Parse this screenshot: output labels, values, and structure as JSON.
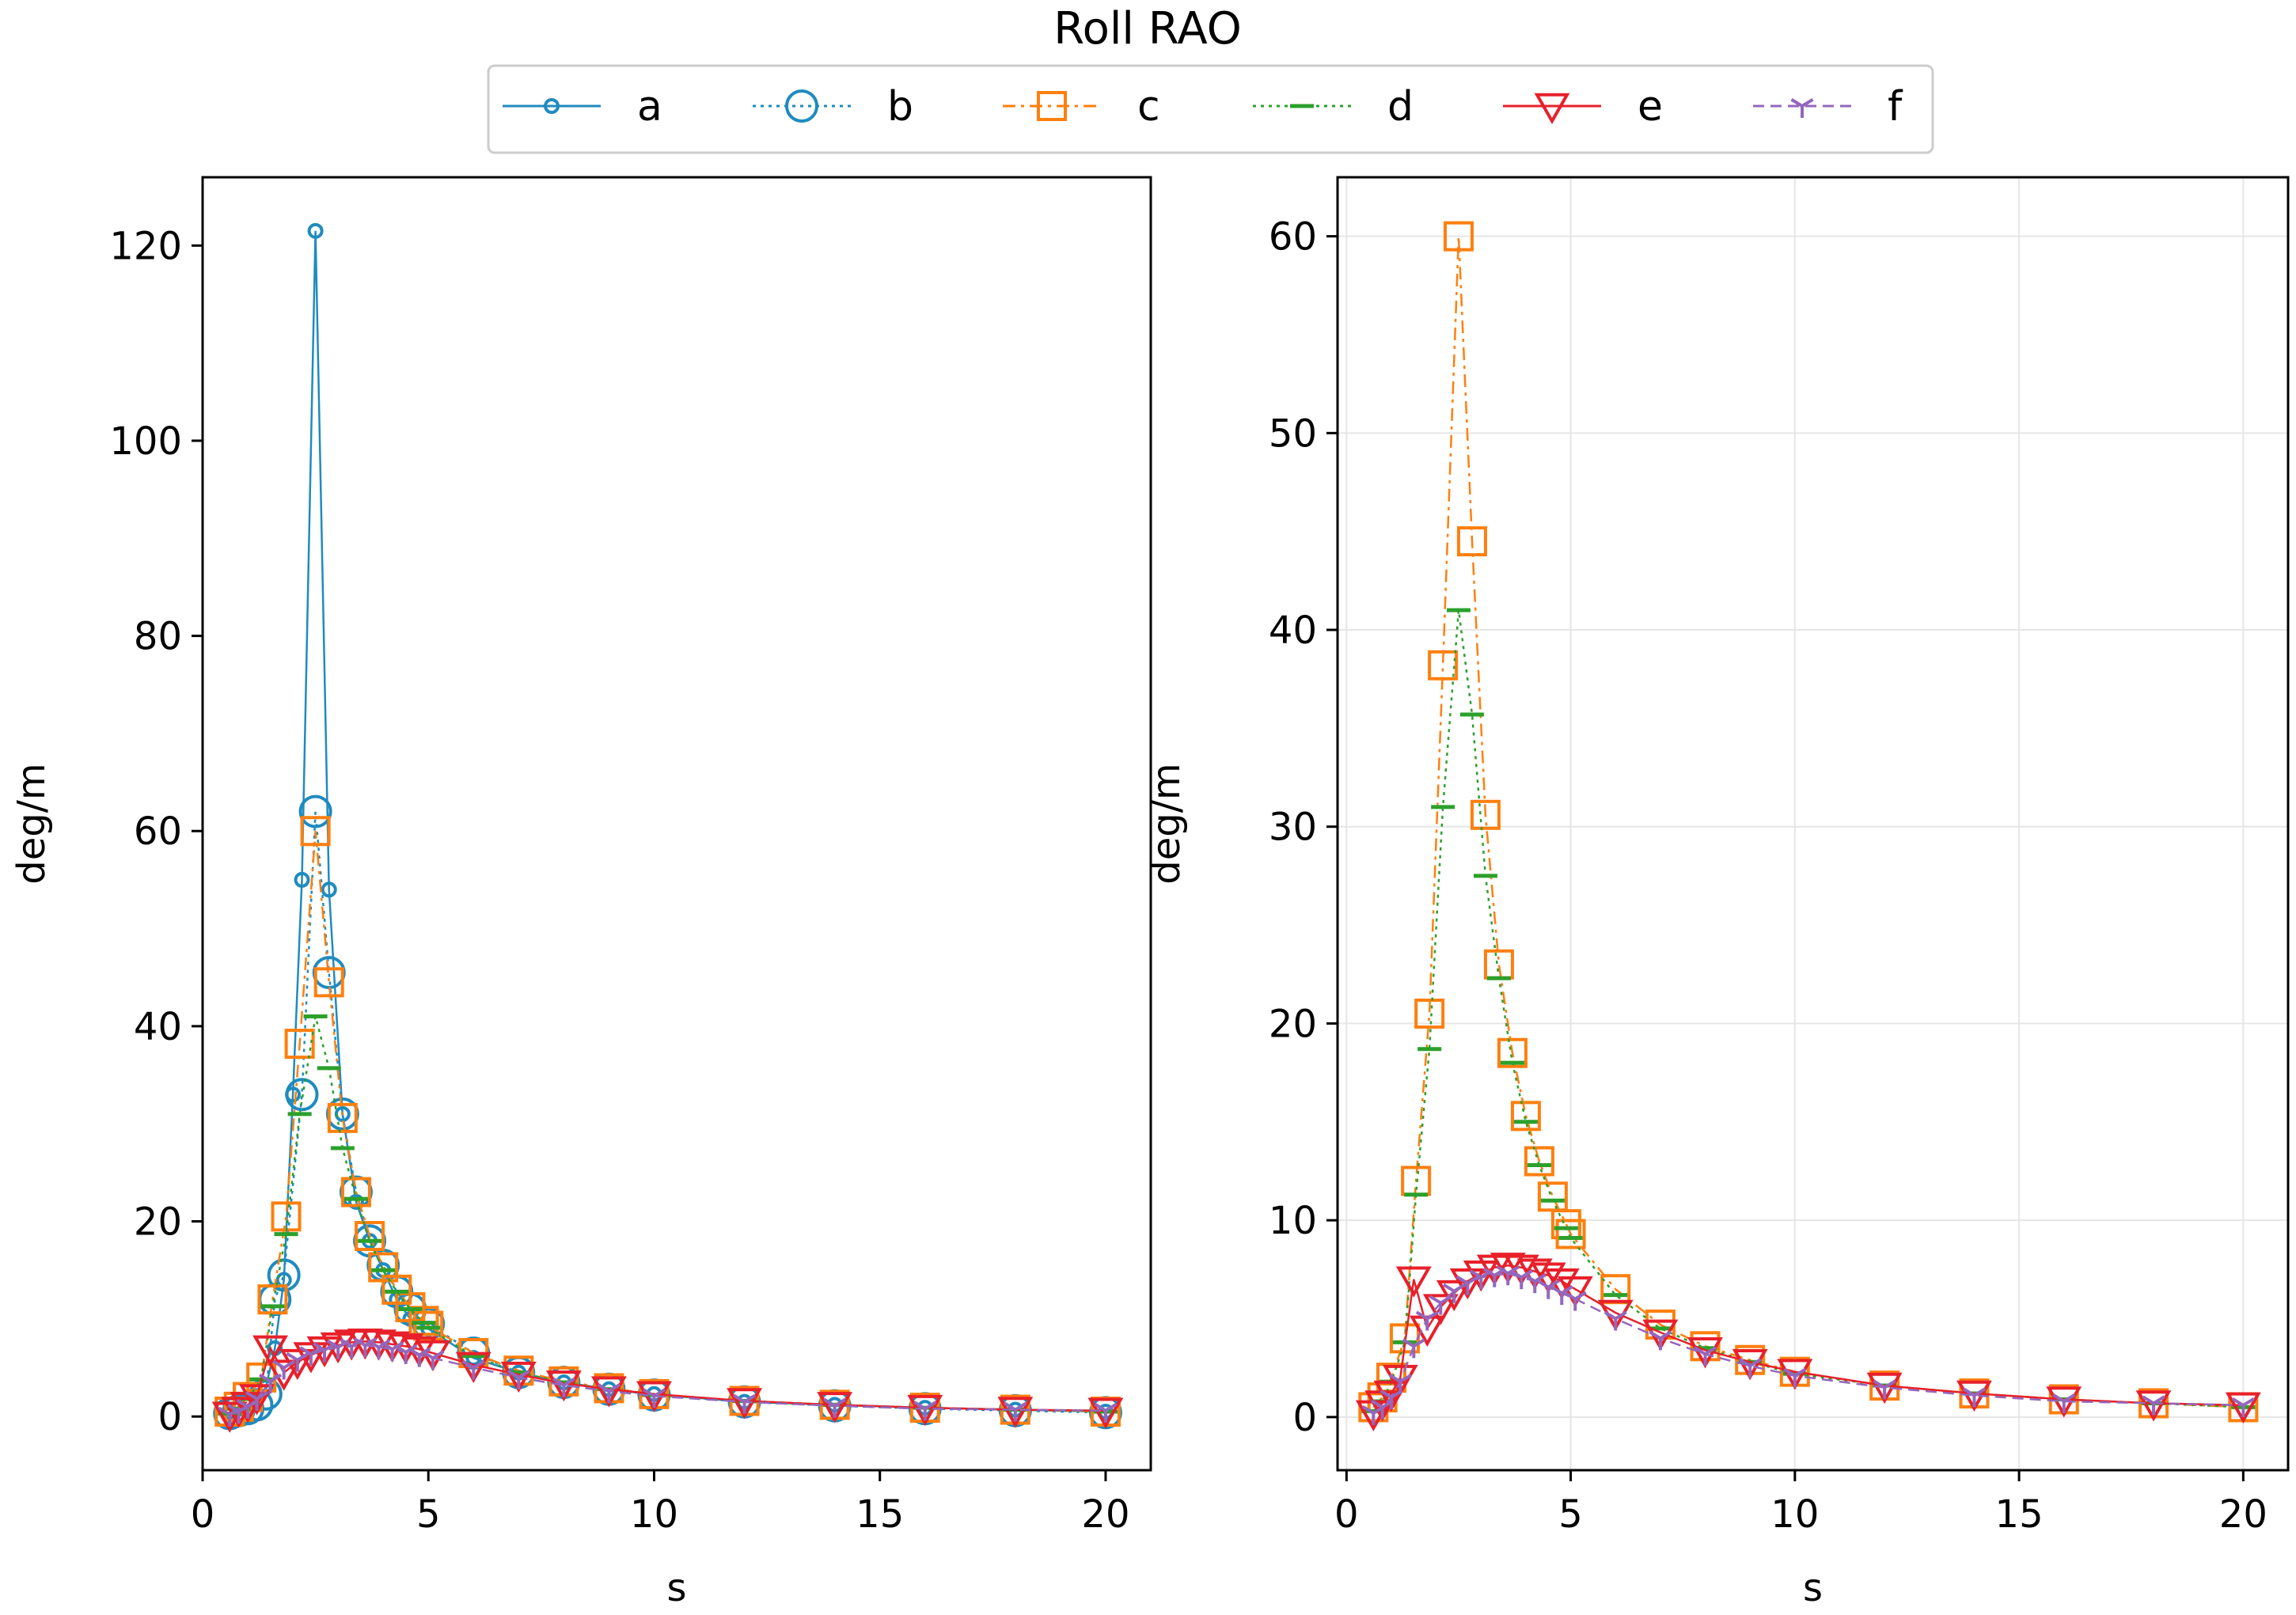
{
  "figure_title": "Roll RAO",
  "legend": [
    {
      "label": "a",
      "color": "#1f8bbf",
      "marker": "small-circle",
      "dash": "solid"
    },
    {
      "label": "b",
      "color": "#1f8bbf",
      "marker": "circle",
      "dash": "dotted"
    },
    {
      "label": "c",
      "color": "#ff7f0e",
      "marker": "square",
      "dash": "dashdot"
    },
    {
      "label": "d",
      "color": "#2ca02c",
      "marker": "hline",
      "dash": "dotted"
    },
    {
      "label": "e",
      "color": "#e8202a",
      "marker": "triangle-down",
      "dash": "solid"
    },
    {
      "label": "f",
      "color": "#9467bd",
      "marker": "tri-down",
      "dash": "dashed"
    }
  ],
  "chart_data": [
    {
      "type": "line",
      "xlabel": "s",
      "ylabel": "deg/m",
      "xlim": [
        0,
        21
      ],
      "ylim": [
        -5.5,
        127
      ],
      "xticks": [
        0,
        5,
        10,
        15,
        20
      ],
      "yticks": [
        0,
        20,
        40,
        60,
        80,
        100,
        120
      ],
      "grid": false,
      "series": [
        {
          "name": "a",
          "x": [
            0.6,
            0.8,
            1.0,
            1.2,
            1.4,
            1.6,
            1.8,
            2.0,
            2.2,
            2.5,
            2.8,
            3.1,
            3.4,
            3.7,
            4.0,
            4.3,
            4.6,
            5.0,
            6,
            7,
            8,
            9,
            10,
            12,
            14,
            16,
            18,
            20
          ],
          "y": [
            0.5,
            0.8,
            1.2,
            1.8,
            3,
            7,
            14,
            33,
            55,
            121.5,
            54,
            31,
            22,
            18,
            15,
            12,
            10,
            9,
            6,
            4.5,
            3.5,
            2.8,
            2.3,
            1.5,
            1.2,
            0.9,
            0.7,
            0.5
          ]
        },
        {
          "name": "b",
          "x": [
            0.6,
            0.8,
            1.0,
            1.2,
            1.4,
            1.6,
            1.8,
            2.2,
            2.5,
            2.8,
            3.1,
            3.4,
            3.7,
            4.0,
            4.3,
            4.6,
            5.0,
            6,
            7,
            8,
            9,
            10,
            12,
            14,
            16,
            18,
            20
          ],
          "y": [
            0.3,
            0.6,
            0.8,
            1.2,
            2.3,
            12,
            14.5,
            33,
            62,
            45.5,
            31,
            23,
            18,
            15.5,
            12.8,
            11,
            9.5,
            6.5,
            4.5,
            3.5,
            2.8,
            2.2,
            1.5,
            1.1,
            0.8,
            0.6,
            0.4
          ]
        },
        {
          "name": "c",
          "x": [
            0.6,
            0.8,
            1.0,
            1.3,
            1.55,
            1.85,
            2.15,
            2.5,
            2.8,
            3.1,
            3.4,
            3.7,
            4.0,
            4.3,
            4.6,
            4.9,
            5.0,
            6,
            7,
            8,
            9,
            10,
            12,
            14,
            16,
            18,
            20
          ],
          "y": [
            0.5,
            1,
            2,
            4,
            12,
            20.5,
            38.2,
            60,
            44.5,
            30.6,
            23,
            18.5,
            15.3,
            13,
            11.2,
            9.8,
            9.3,
            6.5,
            4.7,
            3.6,
            2.9,
            2.3,
            1.6,
            1.2,
            0.9,
            0.7,
            0.5
          ]
        },
        {
          "name": "d",
          "x": [
            0.6,
            0.8,
            1.0,
            1.3,
            1.55,
            1.85,
            2.15,
            2.5,
            2.8,
            3.1,
            3.4,
            3.7,
            4.0,
            4.3,
            4.6,
            4.9,
            5.0,
            6,
            7,
            8,
            9,
            10,
            12,
            14,
            16,
            18,
            20
          ],
          "y": [
            0.3,
            0.8,
            1.8,
            3.8,
            11.3,
            18.7,
            31,
            41,
            35.7,
            27.5,
            22.3,
            18,
            15,
            12.8,
            11,
            9.6,
            9.1,
            6.2,
            4.5,
            3.5,
            2.8,
            2.2,
            1.6,
            1.2,
            0.9,
            0.7,
            0.5
          ]
        },
        {
          "name": "e",
          "x": [
            0.6,
            0.8,
            1.0,
            1.2,
            1.5,
            1.8,
            2.1,
            2.4,
            2.7,
            3.0,
            3.3,
            3.6,
            3.9,
            4.2,
            4.5,
            4.8,
            5.1,
            6,
            7,
            8,
            9,
            10,
            12,
            14,
            16,
            18,
            20
          ],
          "y": [
            0.2,
            0.7,
            1.2,
            2,
            7,
            4.5,
            5.6,
            6.3,
            6.9,
            7.3,
            7.6,
            7.7,
            7.6,
            7.4,
            7.2,
            6.9,
            6.5,
            5.3,
            4.3,
            3.4,
            2.8,
            2.3,
            1.6,
            1.2,
            0.9,
            0.7,
            0.6
          ]
        },
        {
          "name": "f",
          "x": [
            0.6,
            0.8,
            1.0,
            1.2,
            1.5,
            1.8,
            2.1,
            2.4,
            2.7,
            3.0,
            3.3,
            3.6,
            3.9,
            4.2,
            4.5,
            4.8,
            5.1,
            6,
            7,
            8,
            9,
            10,
            12,
            14,
            16,
            18,
            20
          ],
          "y": [
            0.2,
            0.5,
            1,
            1.8,
            3.6,
            5,
            5.8,
            6.4,
            6.8,
            7.1,
            7.2,
            7.3,
            7.1,
            6.9,
            6.6,
            6.3,
            6,
            5,
            4,
            3.2,
            2.6,
            2.1,
            1.5,
            1.1,
            0.8,
            0.7,
            0.6
          ]
        }
      ]
    },
    {
      "type": "line",
      "xlabel": "s",
      "ylabel": "deg/m",
      "xlim": [
        -0.2,
        21
      ],
      "ylim": [
        -2.7,
        63
      ],
      "xticks": [
        0,
        5,
        10,
        15,
        20
      ],
      "yticks": [
        0,
        10,
        20,
        30,
        40,
        50,
        60
      ],
      "grid": true,
      "series": [
        {
          "name": "c",
          "x": [
            0.6,
            0.8,
            1.0,
            1.3,
            1.55,
            1.85,
            2.15,
            2.5,
            2.8,
            3.1,
            3.4,
            3.7,
            4.0,
            4.3,
            4.6,
            4.9,
            5.0,
            6,
            7,
            8,
            9,
            10,
            12,
            14,
            16,
            18,
            20
          ],
          "y": [
            0.5,
            1,
            2,
            4,
            12,
            20.5,
            38.2,
            60,
            44.5,
            30.6,
            23,
            18.5,
            15.3,
            13,
            11.2,
            9.8,
            9.3,
            6.5,
            4.7,
            3.6,
            2.9,
            2.3,
            1.6,
            1.2,
            0.9,
            0.7,
            0.5
          ]
        },
        {
          "name": "d",
          "x": [
            0.6,
            0.8,
            1.0,
            1.3,
            1.55,
            1.85,
            2.15,
            2.5,
            2.8,
            3.1,
            3.4,
            3.7,
            4.0,
            4.3,
            4.6,
            4.9,
            5.0,
            6,
            7,
            8,
            9,
            10,
            12,
            14,
            16,
            18,
            20
          ],
          "y": [
            0.3,
            0.8,
            1.8,
            3.8,
            11.3,
            18.7,
            31,
            41,
            35.7,
            27.5,
            22.3,
            18,
            15,
            12.8,
            11,
            9.6,
            9.1,
            6.2,
            4.5,
            3.5,
            2.8,
            2.2,
            1.6,
            1.2,
            0.9,
            0.7,
            0.5
          ]
        },
        {
          "name": "e",
          "x": [
            0.6,
            0.8,
            1.0,
            1.2,
            1.5,
            1.8,
            2.1,
            2.4,
            2.7,
            3.0,
            3.3,
            3.6,
            3.9,
            4.2,
            4.5,
            4.8,
            5.1,
            6,
            7,
            8,
            9,
            10,
            12,
            14,
            16,
            18,
            20
          ],
          "y": [
            0.2,
            0.7,
            1.2,
            2,
            7,
            4.5,
            5.6,
            6.3,
            6.9,
            7.3,
            7.6,
            7.7,
            7.6,
            7.4,
            7.2,
            6.9,
            6.5,
            5.3,
            4.3,
            3.4,
            2.8,
            2.3,
            1.6,
            1.2,
            0.9,
            0.7,
            0.6
          ]
        },
        {
          "name": "f",
          "x": [
            0.6,
            0.8,
            1.0,
            1.2,
            1.5,
            1.8,
            2.1,
            2.4,
            2.7,
            3.0,
            3.3,
            3.6,
            3.9,
            4.2,
            4.5,
            4.8,
            5.1,
            6,
            7,
            8,
            9,
            10,
            12,
            14,
            16,
            18,
            20
          ],
          "y": [
            0.2,
            0.5,
            1,
            1.8,
            3.6,
            5,
            5.8,
            6.4,
            6.8,
            7.1,
            7.2,
            7.3,
            7.1,
            6.9,
            6.6,
            6.3,
            6,
            5,
            4,
            3.2,
            2.6,
            2.1,
            1.5,
            1.1,
            0.8,
            0.7,
            0.6
          ]
        }
      ]
    }
  ]
}
